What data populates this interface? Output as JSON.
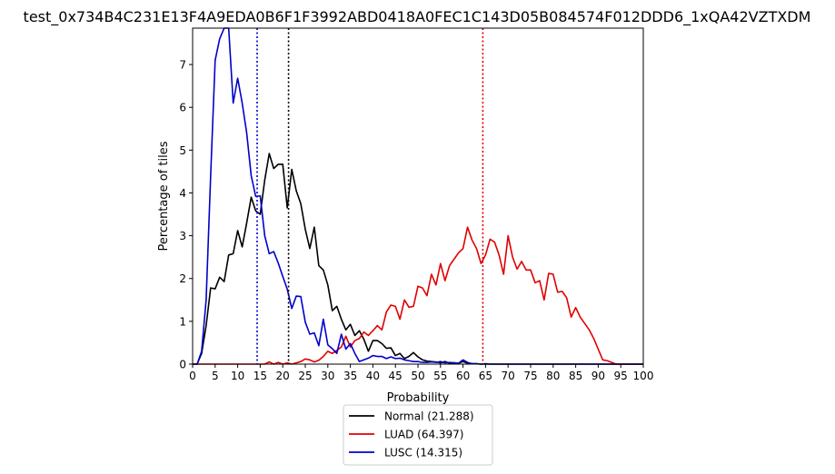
{
  "chart_data": {
    "type": "line",
    "title": "test_0x734B4C231E13F4A9EDA0B6F1F3992ABD0418A0FEC1C143D05B084574F012DDD6_1xQA42VZTXDM",
    "xlabel": "Probability",
    "ylabel": "Percentage of tiles",
    "xlim": [
      0,
      100
    ],
    "ylim": [
      0,
      7.85
    ],
    "xticks": [
      "0",
      "5",
      "10",
      "15",
      "20",
      "25",
      "30",
      "35",
      "40",
      "45",
      "50",
      "55",
      "60",
      "65",
      "70",
      "75",
      "80",
      "85",
      "90",
      "95",
      "100"
    ],
    "yticks": [
      "0",
      "1",
      "2",
      "3",
      "4",
      "5",
      "6",
      "7"
    ],
    "legend_position": "below",
    "series": [
      {
        "name": "Normal (21.288)",
        "color": "#000000",
        "mean": 21.288,
        "x": [
          0,
          1,
          2,
          3,
          4,
          5,
          6,
          7,
          8,
          9,
          10,
          11,
          12,
          13,
          14,
          15,
          16,
          17,
          18,
          19,
          20,
          21,
          22,
          23,
          24,
          25,
          26,
          27,
          28,
          29,
          30,
          31,
          32,
          33,
          34,
          35,
          36,
          37,
          38,
          39,
          40,
          41,
          42,
          43,
          44,
          45,
          46,
          47,
          48,
          49,
          50,
          51,
          52,
          53,
          54,
          55,
          56,
          57,
          58,
          59,
          60,
          61,
          62,
          63,
          64,
          65,
          66,
          67,
          68,
          69,
          70,
          71,
          72,
          73,
          74,
          75,
          76,
          77,
          78,
          79,
          80,
          81,
          82,
          83,
          84,
          85,
          86,
          87,
          88,
          89,
          90,
          91,
          92,
          93,
          94,
          95,
          96,
          97,
          98,
          99,
          100
        ],
        "values": [
          0,
          0,
          0.25,
          0.9,
          1.78,
          1.76,
          2.03,
          1.93,
          2.55,
          2.58,
          3.12,
          2.74,
          3.3,
          3.9,
          3.58,
          3.5,
          4.3,
          4.92,
          4.57,
          4.67,
          4.67,
          3.65,
          4.55,
          4.05,
          3.75,
          3.15,
          2.7,
          3.2,
          2.3,
          2.2,
          1.85,
          1.25,
          1.35,
          1.05,
          0.8,
          0.93,
          0.67,
          0.78,
          0.58,
          0.3,
          0.55,
          0.55,
          0.48,
          0.37,
          0.38,
          0.2,
          0.25,
          0.13,
          0.18,
          0.27,
          0.17,
          0.1,
          0.07,
          0.06,
          0.05,
          0.03,
          0.06,
          0.02,
          0.03,
          0.02,
          0.06,
          0.02,
          0.01,
          0.01,
          0,
          0.01,
          0,
          0,
          0,
          0,
          0,
          0,
          0,
          0,
          0,
          0,
          0,
          0,
          0,
          0,
          0,
          0,
          0,
          0,
          0,
          0,
          0,
          0,
          0,
          0,
          0,
          0,
          0,
          0,
          0,
          0,
          0,
          0,
          0,
          0,
          0
        ]
      },
      {
        "name": "LUAD (64.397)",
        "color": "#e00000",
        "mean": 64.397,
        "x": [
          0,
          1,
          2,
          3,
          4,
          5,
          6,
          7,
          8,
          9,
          10,
          11,
          12,
          13,
          14,
          15,
          16,
          17,
          18,
          19,
          20,
          21,
          22,
          23,
          24,
          25,
          26,
          27,
          28,
          29,
          30,
          31,
          32,
          33,
          34,
          35,
          36,
          37,
          38,
          39,
          40,
          41,
          42,
          43,
          44,
          45,
          46,
          47,
          48,
          49,
          50,
          51,
          52,
          53,
          54,
          55,
          56,
          57,
          58,
          59,
          60,
          61,
          62,
          63,
          64,
          65,
          66,
          67,
          68,
          69,
          70,
          71,
          72,
          73,
          74,
          75,
          76,
          77,
          78,
          79,
          80,
          81,
          82,
          83,
          84,
          85,
          86,
          87,
          88,
          89,
          90,
          91,
          92,
          93,
          94,
          95,
          96,
          97,
          98,
          99,
          100
        ],
        "values": [
          0,
          0,
          0,
          0,
          0,
          0,
          0,
          0,
          0,
          0,
          0,
          0,
          0,
          0,
          0,
          0,
          0,
          0.05,
          0,
          0.04,
          0,
          0.03,
          0,
          0.03,
          0.06,
          0.12,
          0.1,
          0.05,
          0.09,
          0.18,
          0.3,
          0.25,
          0.32,
          0.4,
          0.65,
          0.4,
          0.55,
          0.6,
          0.75,
          0.67,
          0.78,
          0.9,
          0.8,
          1.22,
          1.38,
          1.35,
          1.05,
          1.5,
          1.33,
          1.35,
          1.82,
          1.78,
          1.6,
          2.1,
          1.85,
          2.35,
          1.95,
          2.3,
          2.45,
          2.6,
          2.7,
          3.2,
          2.9,
          2.7,
          2.35,
          2.55,
          2.92,
          2.85,
          2.55,
          2.1,
          3.0,
          2.5,
          2.22,
          2.4,
          2.2,
          2.2,
          1.9,
          1.95,
          1.5,
          2.12,
          2.1,
          1.68,
          1.7,
          1.55,
          1.1,
          1.32,
          1.1,
          0.95,
          0.8,
          0.6,
          0.35,
          0.1,
          0.08,
          0.04,
          0,
          0,
          0,
          0,
          0,
          0,
          0
        ]
      },
      {
        "name": "LUSC (14.315)",
        "color": "#0000cc",
        "mean": 14.315,
        "x": [
          0,
          1,
          2,
          3,
          4,
          5,
          6,
          7,
          8,
          9,
          10,
          11,
          12,
          13,
          14,
          15,
          16,
          17,
          18,
          19,
          20,
          21,
          22,
          23,
          24,
          25,
          26,
          27,
          28,
          29,
          30,
          31,
          32,
          33,
          34,
          35,
          36,
          37,
          38,
          39,
          40,
          41,
          42,
          43,
          44,
          45,
          46,
          47,
          48,
          49,
          50,
          51,
          52,
          53,
          54,
          55,
          56,
          57,
          58,
          59,
          60,
          61,
          62,
          63,
          64,
          65,
          66,
          67,
          68,
          69,
          70,
          71,
          72,
          73,
          74,
          75,
          76,
          77,
          78,
          79,
          80,
          81,
          82,
          83,
          84,
          85,
          86,
          87,
          88,
          89,
          90,
          91,
          92,
          93,
          94,
          95,
          96,
          97,
          98,
          99,
          100
        ],
        "values": [
          0,
          0,
          0.3,
          1.5,
          4.4,
          7.1,
          7.6,
          7.85,
          7.85,
          6.1,
          6.68,
          6.1,
          5.4,
          4.4,
          3.92,
          3.93,
          3.0,
          2.58,
          2.63,
          2.36,
          2.05,
          1.75,
          1.3,
          1.59,
          1.58,
          0.98,
          0.7,
          0.73,
          0.43,
          1.05,
          0.45,
          0.36,
          0.25,
          0.7,
          0.35,
          0.48,
          0.25,
          0.06,
          0.1,
          0.14,
          0.2,
          0.18,
          0.18,
          0.13,
          0.17,
          0.13,
          0.14,
          0.1,
          0.08,
          0.06,
          0.06,
          0.04,
          0.04,
          0.05,
          0.04,
          0.06,
          0.03,
          0.04,
          0.03,
          0.02,
          0.1,
          0.04,
          0.01,
          0.01,
          0,
          0,
          0,
          0,
          0,
          0,
          0,
          0,
          0,
          0,
          0,
          0,
          0,
          0,
          0,
          0,
          0,
          0,
          0,
          0,
          0,
          0,
          0,
          0,
          0,
          0,
          0,
          0,
          0,
          0,
          0,
          0,
          0,
          0,
          0,
          0,
          0
        ]
      }
    ]
  }
}
